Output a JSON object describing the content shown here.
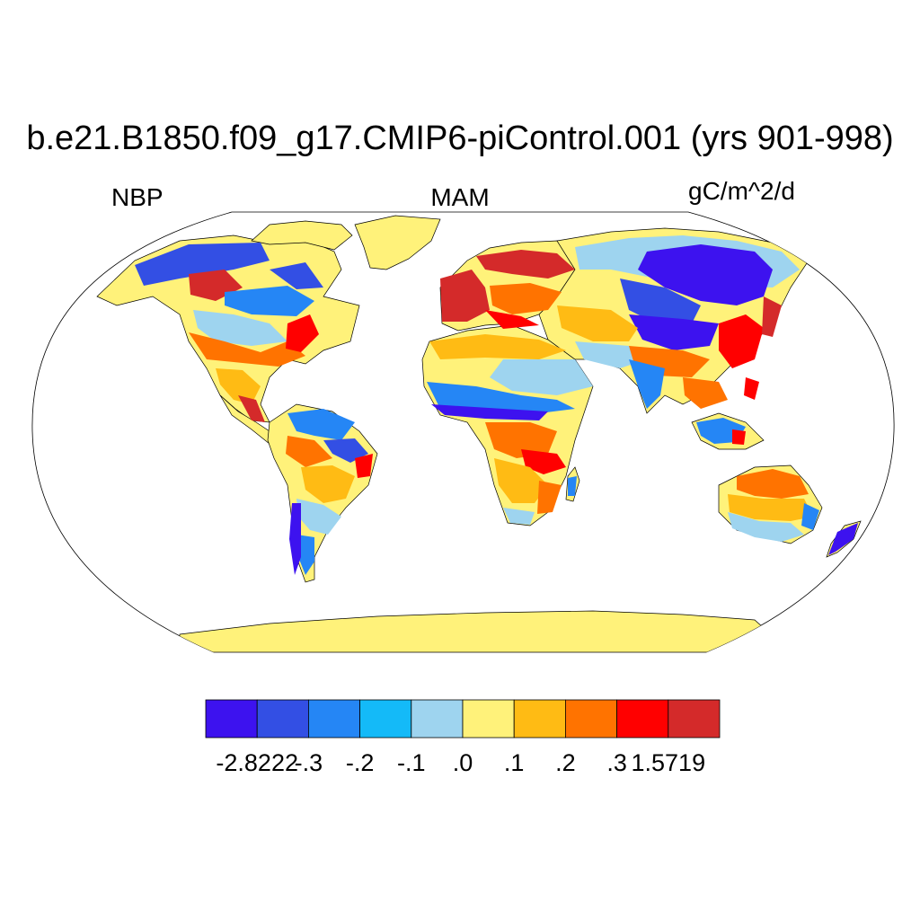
{
  "title": "b.e21.B1850.f09_g17.CMIP6-piControl.001 (yrs 901-998)",
  "labels": {
    "left": "NBP",
    "center": "MAM",
    "right": "gC/m^2/d"
  },
  "colors": {
    "ocean": "#ffffff",
    "outline": "#000000",
    "land_base": "#fff27a",
    "bins": [
      "#3d12ef",
      "#334fe4",
      "#2586f5",
      "#14baf8",
      "#9ed4ef",
      "#fff27a",
      "#ffbb14",
      "#ff7300",
      "#ff0000",
      "#d42a2a"
    ]
  },
  "colorbar": {
    "tick_labels": [
      "-2.8222",
      "-.3",
      "-.2",
      "-.1",
      ".0",
      ".1",
      ".2",
      ".3",
      "1.5719"
    ]
  }
}
